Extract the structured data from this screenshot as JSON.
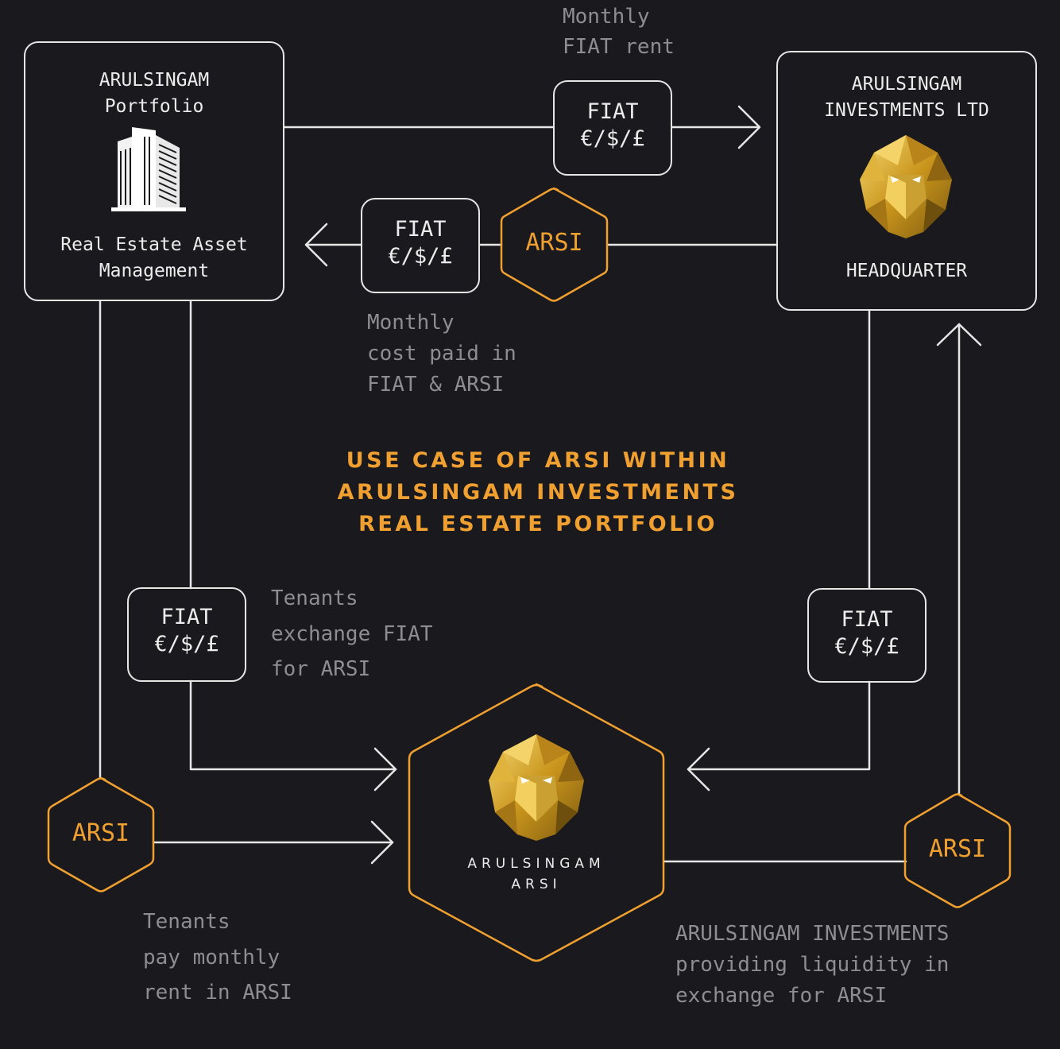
{
  "colors": {
    "background": "#1a1a1e",
    "line": "#e6e6e6",
    "accent": "#f0a030",
    "note": "#8e8e92",
    "gold": "#d9a520"
  },
  "title": [
    "USE CASE OF ARSI WITHIN",
    "ARULSINGAM INVESTMENTS",
    "REAL ESTATE PORTFOLIO"
  ],
  "portfolio": {
    "name_line1": "ARULSINGAM",
    "name_line2": "Portfolio",
    "icon": "building-icon",
    "desc_line1": "Real Estate Asset",
    "desc_line2": "Management"
  },
  "headquarter": {
    "name_line1": "ARULSINGAM",
    "name_line2": "INVESTMENTS LTD",
    "icon": "lion-logo-icon",
    "label": "HEADQUARTER"
  },
  "center_hub": {
    "icon": "lion-logo-icon",
    "brand_line1": "ARULSINGAM",
    "brand_line2": "ARSI"
  },
  "fiat_token": {
    "line1": "FIAT",
    "line2": "€/$/£"
  },
  "arsi_token": {
    "label": "ARSI"
  },
  "notes": {
    "monthly_rent": [
      "Monthly",
      "FIAT rent"
    ],
    "monthly_cost": [
      "Monthly",
      "cost paid in",
      "FIAT & ARSI"
    ],
    "tenants_exchange": [
      "Tenants",
      "exchange FIAT",
      "for ARSI"
    ],
    "tenants_pay": [
      "Tenants",
      "pay monthly",
      "rent in ARSI"
    ],
    "liquidity": [
      "ARULSINGAM INVESTMENTS",
      "providing liquidity in",
      "exchange for ARSI"
    ]
  }
}
